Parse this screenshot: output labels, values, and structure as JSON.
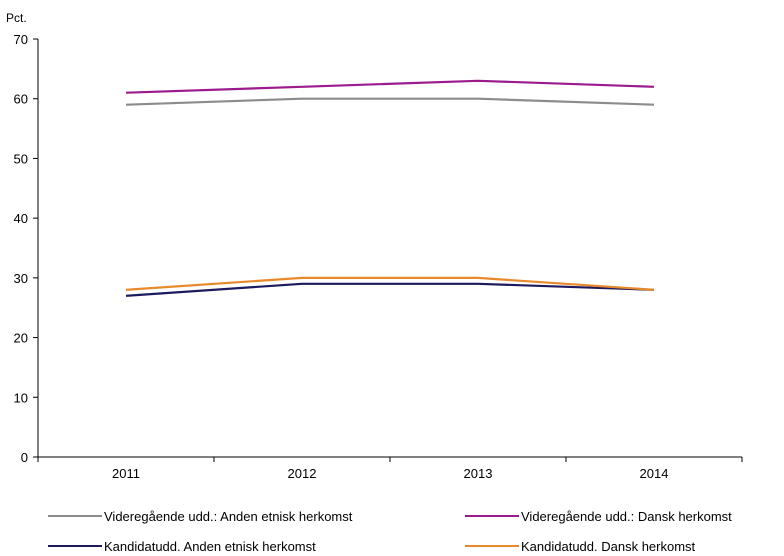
{
  "chart_data": {
    "type": "line",
    "ylabel": "Pct.",
    "x": [
      "2011",
      "2012",
      "2013",
      "2014"
    ],
    "ylim": [
      0,
      70
    ],
    "yticks": [
      0,
      10,
      20,
      30,
      40,
      50,
      60,
      70
    ],
    "grid": false,
    "legend_position": "bottom",
    "series": [
      {
        "name": "Videregående udd.: Anden etnisk herkomst",
        "color": "#8c8c8c",
        "values": [
          59,
          60,
          60,
          59
        ]
      },
      {
        "name": "Videregående udd.: Dansk herkomst",
        "color": "#9b1b8e",
        "values": [
          61,
          62,
          63,
          62
        ]
      },
      {
        "name": "Kandidatudd. Anden etnisk herkomst",
        "color": "#1c1a5c",
        "values": [
          27,
          29,
          29,
          28
        ]
      },
      {
        "name": "Kandidatudd. Dansk herkomst",
        "color": "#e8892a",
        "values": [
          28,
          30,
          30,
          28
        ]
      }
    ]
  }
}
